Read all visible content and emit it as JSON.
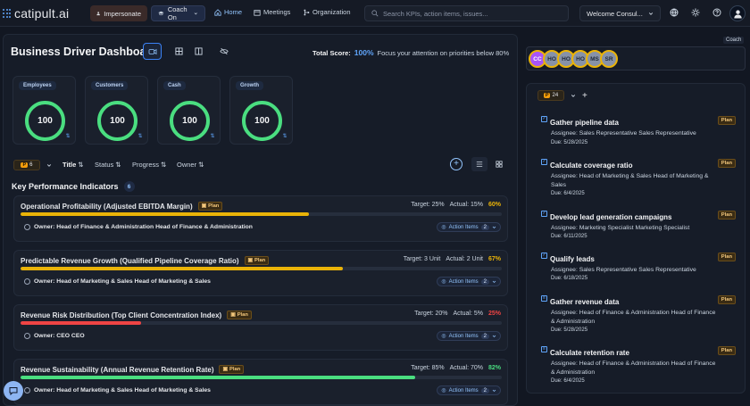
{
  "app": {
    "logo_text": "catipult.ai"
  },
  "topbar": {
    "impersonate_label": "Impersonate",
    "coach_label": "Coach On",
    "nav": {
      "home": "Home",
      "meetings": "Meetings",
      "organization": "Organization"
    },
    "search_placeholder": "Search KPIs, action items, issues...",
    "welcome": "Welcome Consul..."
  },
  "dashboard": {
    "title": "Business Driver Dashboard",
    "total_score_label": "Total Score:",
    "total_score_value": "100%",
    "total_score_note": "Focus your attention on priorities below 80%",
    "score_cards": [
      {
        "label": "Employees",
        "value": "100"
      },
      {
        "label": "Customers",
        "value": "100"
      },
      {
        "label": "Cash",
        "value": "100"
      },
      {
        "label": "Growth",
        "value": "100"
      }
    ],
    "filter": {
      "priority_letter": "P",
      "priority_count": "6"
    },
    "sort": {
      "title": "Title",
      "status": "Status",
      "progress": "Progress",
      "owner": "Owner"
    },
    "section_title": "Key Performance Indicators",
    "section_count": "6",
    "kpis": [
      {
        "name": "Operational Profitability (Adjusted EBITDA Margin)",
        "plan": "Plan",
        "target": "Target: 25%",
        "actual": "Actual: 15%",
        "percent": "60%",
        "progress": 0.6,
        "color": "#eab308",
        "owner": "Owner: Head of Finance & Administration Head of Finance & Administration",
        "action_label": "Action Items",
        "action_count": "2"
      },
      {
        "name": "Predictable Revenue Growth (Qualified Pipeline Coverage Ratio)",
        "plan": "Plan",
        "target": "Target: 3 Unit",
        "actual": "Actual: 2 Unit",
        "percent": "67%",
        "progress": 0.67,
        "color": "#eab308",
        "owner": "Owner: Head of Marketing & Sales Head of Marketing & Sales",
        "action_label": "Action Items",
        "action_count": "2"
      },
      {
        "name": "Revenue Risk Distribution (Top Client Concentration Index)",
        "plan": "Plan",
        "target": "Target: 20%",
        "actual": "Actual: 5%",
        "percent": "25%",
        "progress": 0.25,
        "color": "#ef4444",
        "owner": "Owner: CEO CEO",
        "action_label": "Action Items",
        "action_count": "2"
      },
      {
        "name": "Revenue Sustainability (Annual Revenue Retention Rate)",
        "plan": "Plan",
        "target": "Target: 85%",
        "actual": "Actual: 70%",
        "percent": "82%",
        "progress": 0.82,
        "color": "#4ade80",
        "owner": "Owner: Head of Marketing & Sales Head of Marketing & Sales",
        "action_label": "Action Items",
        "action_count": "2"
      }
    ]
  },
  "right_panel": {
    "coach_tag": "Coach",
    "avatars": [
      "CC",
      "HO",
      "HO",
      "HO",
      "MS",
      "SR"
    ],
    "filter": {
      "priority_letter": "P",
      "priority_count": "24"
    },
    "items": [
      {
        "title": "Gather pipeline data",
        "assignee": "Assignee: Sales Representative Sales Representative",
        "due": "Due: 5/28/2025",
        "plan": "Plan"
      },
      {
        "title": "Calculate coverage ratio",
        "assignee": "Assignee: Head of Marketing & Sales Head of Marketing & Sales",
        "due": "Due: 6/4/2025",
        "plan": "Plan"
      },
      {
        "title": "Develop lead generation campaigns",
        "assignee": "Assignee: Marketing Specialist Marketing Specialist",
        "due": "Due: 6/11/2025",
        "plan": "Plan"
      },
      {
        "title": "Qualify leads",
        "assignee": "Assignee: Sales Representative Sales Representative",
        "due": "Due: 6/18/2025",
        "plan": "Plan"
      },
      {
        "title": "Gather revenue data",
        "assignee": "Assignee: Head of Finance & Administration Head of Finance & Administration",
        "due": "Due: 5/28/2025",
        "plan": "Plan"
      },
      {
        "title": "Calculate retention rate",
        "assignee": "Assignee: Head of Finance & Administration Head of Finance & Administration",
        "due": "Due: 6/4/2025",
        "plan": "Plan"
      }
    ]
  },
  "colors": {
    "accent": "#60a5fa",
    "good": "#4ade80",
    "warn": "#eab308",
    "bad": "#ef4444",
    "plan": "#f3c77b"
  },
  "icons": [
    "grid-logo-icon",
    "person-icon",
    "graduation-cap-icon",
    "home-icon",
    "calendar-icon",
    "org-icon",
    "search-icon",
    "chevron-down-icon",
    "globe-icon",
    "sun-icon",
    "help-icon",
    "user-icon",
    "video-icon",
    "grid-icon",
    "columns-icon",
    "eye-off-icon",
    "trend-icon",
    "plus-circle-icon",
    "list-icon",
    "tiles-icon",
    "owner-icon",
    "checklist-icon",
    "chat-icon"
  ]
}
